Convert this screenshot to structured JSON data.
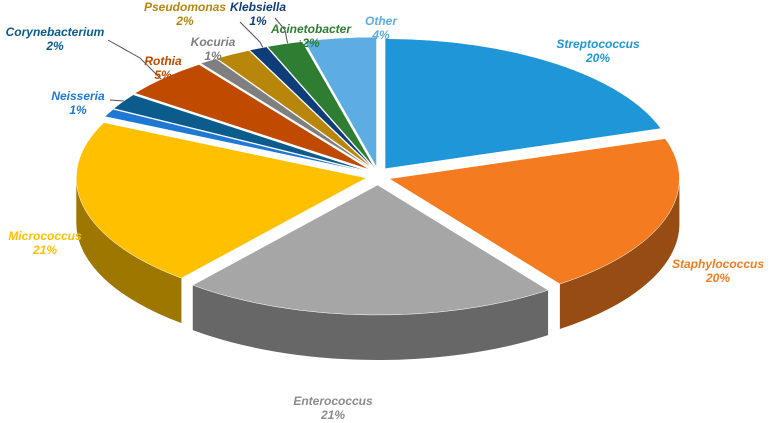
{
  "chart_data": {
    "type": "pie",
    "categories": [
      "Streptococcus",
      "Staphylococcus",
      "Enterococcus",
      "Micrococcus",
      "Neisseria",
      "Corynebacterium",
      "Rothia",
      "Kocuria",
      "Pseudomonas",
      "Klebsiella",
      "Acinetobacter",
      "Other"
    ],
    "values": [
      20,
      20,
      21,
      21,
      1,
      2,
      5,
      1,
      2,
      1,
      2,
      4
    ],
    "value_labels": [
      "20%",
      "20%",
      "21%",
      "21%",
      "1%",
      "2%",
      "5%",
      "1%",
      "2%",
      "1%",
      "2%",
      "4%"
    ],
    "colors": [
      "#1f96d8",
      "#f47b20",
      "#a6a6a6",
      "#ffc000",
      "#1e78d4",
      "#0b5b8c",
      "#c04a00",
      "#7f7f7f",
      "#b8860b",
      "#0e3d7a",
      "#2e7d32",
      "#5dade2"
    ]
  }
}
